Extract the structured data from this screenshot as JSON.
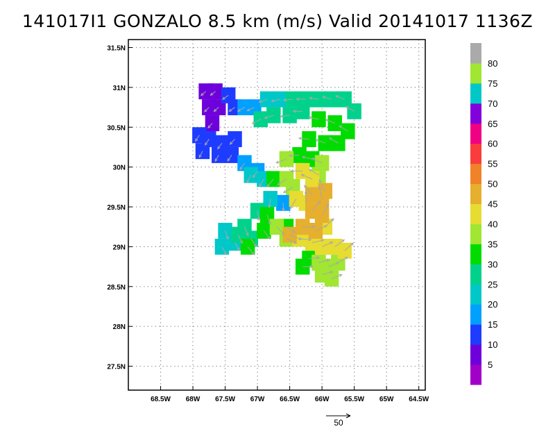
{
  "title": "141017I1  GONZALO  8.5 km  (m/s)  Valid  20141017  1136Z",
  "chart_data": {
    "type": "heatmap",
    "title": "141017I1  GONZALO  8.5 km  (m/s)  Valid  20141017  1136Z",
    "xlim": [
      -69.0,
      -64.4
    ],
    "ylim": [
      27.2,
      31.6
    ],
    "x_ticks": [
      {
        "v": -68.5,
        "label": "68.5W"
      },
      {
        "v": -68.0,
        "label": "68W"
      },
      {
        "v": -67.5,
        "label": "67.5W"
      },
      {
        "v": -67.0,
        "label": "67W"
      },
      {
        "v": -66.5,
        "label": "66.5W"
      },
      {
        "v": -66.0,
        "label": "66W"
      },
      {
        "v": -65.5,
        "label": "65.5W"
      },
      {
        "v": -65.0,
        "label": "65W"
      },
      {
        "v": -64.5,
        "label": "64.5W"
      }
    ],
    "y_ticks": [
      {
        "v": 27.5,
        "label": "27.5N"
      },
      {
        "v": 28.0,
        "label": "28N"
      },
      {
        "v": 28.5,
        "label": "28.5N"
      },
      {
        "v": 29.0,
        "label": "29N"
      },
      {
        "v": 29.5,
        "label": "29.5N"
      },
      {
        "v": 30.0,
        "label": "30N"
      },
      {
        "v": 30.5,
        "label": "30.5N"
      },
      {
        "v": 31.0,
        "label": "31N"
      },
      {
        "v": 31.5,
        "label": "31.5N"
      }
    ],
    "grid": true,
    "colorbar": {
      "labels": [
        "5",
        "10",
        "15",
        "20",
        "25",
        "30",
        "35",
        "40",
        "45",
        "50",
        "55",
        "60",
        "65",
        "70",
        "75",
        "80"
      ],
      "colors": [
        "#a000c8",
        "#6e00dc",
        "#1e3cff",
        "#00a0ff",
        "#00c8c8",
        "#00d28c",
        "#00dc00",
        "#a0e632",
        "#e6dc32",
        "#e6af2d",
        "#f08228",
        "#fa3c3c",
        "#f00082",
        "#8200dc",
        "#00c8c8",
        "#a0e632",
        "#aaaaaa"
      ]
    },
    "wind_cells": [
      {
        "lon": -67.8,
        "lat": 30.95,
        "v": 5
      },
      {
        "lon": -67.65,
        "lat": 30.95,
        "v": 5
      },
      {
        "lon": -67.75,
        "lat": 30.75,
        "v": 5
      },
      {
        "lon": -67.6,
        "lat": 30.75,
        "v": 5
      },
      {
        "lon": -67.7,
        "lat": 30.55,
        "v": 5
      },
      {
        "lon": -67.45,
        "lat": 30.9,
        "v": 10
      },
      {
        "lon": -67.35,
        "lat": 30.75,
        "v": 10
      },
      {
        "lon": -67.9,
        "lat": 30.4,
        "v": 10
      },
      {
        "lon": -67.75,
        "lat": 30.35,
        "v": 10
      },
      {
        "lon": -67.55,
        "lat": 30.3,
        "v": 10
      },
      {
        "lon": -67.35,
        "lat": 30.35,
        "v": 10
      },
      {
        "lon": -67.85,
        "lat": 30.2,
        "v": 10
      },
      {
        "lon": -67.6,
        "lat": 30.15,
        "v": 10
      },
      {
        "lon": -67.4,
        "lat": 30.15,
        "v": 10
      },
      {
        "lon": -67.2,
        "lat": 30.75,
        "v": 15
      },
      {
        "lon": -67.05,
        "lat": 30.75,
        "v": 15
      },
      {
        "lon": -67.2,
        "lat": 30.05,
        "v": 15
      },
      {
        "lon": -67.0,
        "lat": 29.95,
        "v": 15
      },
      {
        "lon": -66.6,
        "lat": 29.55,
        "v": 15
      },
      {
        "lon": -66.85,
        "lat": 30.85,
        "v": 20
      },
      {
        "lon": -66.65,
        "lat": 30.85,
        "v": 20
      },
      {
        "lon": -67.1,
        "lat": 29.9,
        "v": 20
      },
      {
        "lon": -66.9,
        "lat": 29.85,
        "v": 20
      },
      {
        "lon": -66.8,
        "lat": 29.6,
        "v": 20
      },
      {
        "lon": -67.5,
        "lat": 29.2,
        "v": 20
      },
      {
        "lon": -67.55,
        "lat": 29.0,
        "v": 20
      },
      {
        "lon": -67.35,
        "lat": 29.05,
        "v": 20
      },
      {
        "lon": -66.45,
        "lat": 30.85,
        "v": 25
      },
      {
        "lon": -66.25,
        "lat": 30.85,
        "v": 25
      },
      {
        "lon": -66.05,
        "lat": 30.85,
        "v": 25
      },
      {
        "lon": -65.85,
        "lat": 30.85,
        "v": 25
      },
      {
        "lon": -65.65,
        "lat": 30.85,
        "v": 25
      },
      {
        "lon": -66.95,
        "lat": 30.6,
        "v": 25
      },
      {
        "lon": -66.75,
        "lat": 30.65,
        "v": 25
      },
      {
        "lon": -66.5,
        "lat": 30.65,
        "v": 25
      },
      {
        "lon": -66.3,
        "lat": 30.7,
        "v": 25
      },
      {
        "lon": -65.5,
        "lat": 30.7,
        "v": 25
      },
      {
        "lon": -67.2,
        "lat": 29.25,
        "v": 25
      },
      {
        "lon": -67.3,
        "lat": 29.15,
        "v": 25
      },
      {
        "lon": -67.1,
        "lat": 29.1,
        "v": 25
      },
      {
        "lon": -67.0,
        "lat": 29.45,
        "v": 25
      },
      {
        "lon": -66.05,
        "lat": 30.6,
        "v": 30
      },
      {
        "lon": -65.8,
        "lat": 30.55,
        "v": 30
      },
      {
        "lon": -65.6,
        "lat": 30.45,
        "v": 30
      },
      {
        "lon": -66.2,
        "lat": 30.35,
        "v": 30
      },
      {
        "lon": -65.95,
        "lat": 30.3,
        "v": 30
      },
      {
        "lon": -65.75,
        "lat": 30.3,
        "v": 30
      },
      {
        "lon": -66.35,
        "lat": 30.15,
        "v": 30
      },
      {
        "lon": -66.15,
        "lat": 30.1,
        "v": 30
      },
      {
        "lon": -66.75,
        "lat": 29.85,
        "v": 30
      },
      {
        "lon": -66.85,
        "lat": 29.4,
        "v": 30
      },
      {
        "lon": -66.9,
        "lat": 29.2,
        "v": 30
      },
      {
        "lon": -66.55,
        "lat": 29.25,
        "v": 30
      },
      {
        "lon": -66.3,
        "lat": 28.75,
        "v": 30
      },
      {
        "lon": -66.2,
        "lat": 28.85,
        "v": 30
      },
      {
        "lon": -67.15,
        "lat": 29.0,
        "v": 30
      },
      {
        "lon": -66.55,
        "lat": 30.1,
        "v": 35
      },
      {
        "lon": -66.0,
        "lat": 30.05,
        "v": 35
      },
      {
        "lon": -66.55,
        "lat": 29.85,
        "v": 35
      },
      {
        "lon": -66.7,
        "lat": 29.25,
        "v": 35
      },
      {
        "lon": -66.55,
        "lat": 29.1,
        "v": 35
      },
      {
        "lon": -66.05,
        "lat": 28.8,
        "v": 35
      },
      {
        "lon": -65.9,
        "lat": 28.75,
        "v": 35
      },
      {
        "lon": -65.75,
        "lat": 28.8,
        "v": 35
      },
      {
        "lon": -66.0,
        "lat": 28.65,
        "v": 35
      },
      {
        "lon": -65.85,
        "lat": 28.6,
        "v": 35
      },
      {
        "lon": -66.45,
        "lat": 29.75,
        "v": 35
      },
      {
        "lon": -66.05,
        "lat": 29.9,
        "v": 35
      },
      {
        "lon": -66.3,
        "lat": 29.95,
        "v": 40
      },
      {
        "lon": -66.15,
        "lat": 29.85,
        "v": 40
      },
      {
        "lon": -66.4,
        "lat": 29.6,
        "v": 40
      },
      {
        "lon": -66.25,
        "lat": 29.55,
        "v": 40
      },
      {
        "lon": -66.35,
        "lat": 29.1,
        "v": 40
      },
      {
        "lon": -66.15,
        "lat": 29.05,
        "v": 40
      },
      {
        "lon": -66.0,
        "lat": 29.0,
        "v": 40
      },
      {
        "lon": -65.8,
        "lat": 29.0,
        "v": 40
      },
      {
        "lon": -65.65,
        "lat": 28.95,
        "v": 40
      },
      {
        "lon": -65.95,
        "lat": 29.25,
        "v": 40
      },
      {
        "lon": -66.15,
        "lat": 29.65,
        "v": 45
      },
      {
        "lon": -66.0,
        "lat": 29.6,
        "v": 45
      },
      {
        "lon": -66.15,
        "lat": 29.45,
        "v": 45
      },
      {
        "lon": -66.0,
        "lat": 29.4,
        "v": 45
      },
      {
        "lon": -66.3,
        "lat": 29.25,
        "v": 45
      },
      {
        "lon": -66.5,
        "lat": 29.15,
        "v": 45
      },
      {
        "lon": -66.1,
        "lat": 29.2,
        "v": 45
      },
      {
        "lon": -65.95,
        "lat": 29.7,
        "v": 45
      }
    ]
  }
}
